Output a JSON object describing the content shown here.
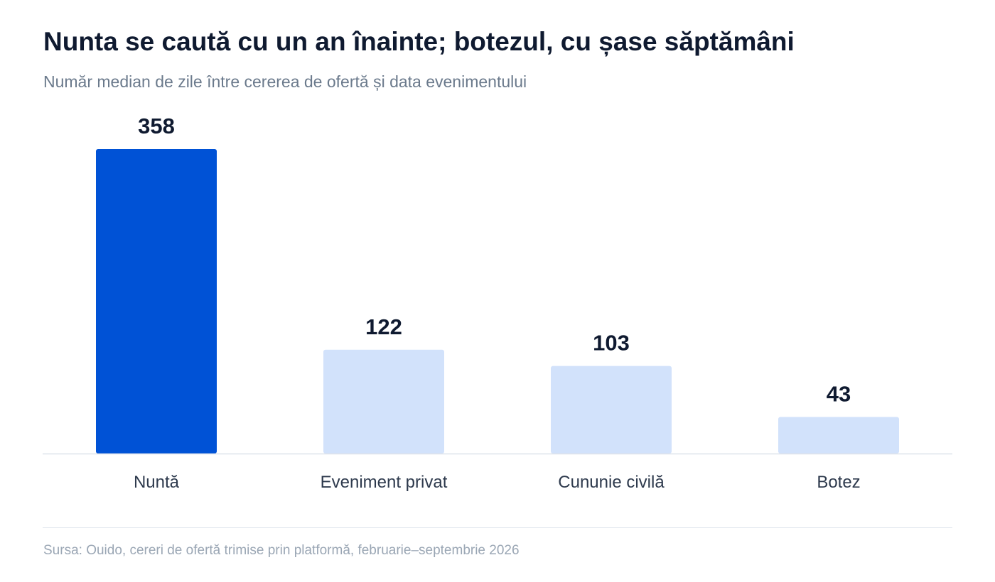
{
  "title": "Nunta se caută cu un an înainte; botezul, cu șase săptămâni",
  "subtitle": "Număr median de zile între cererea de ofertă și data evenimentului",
  "source": "Sursa: Ouido, cereri de ofertă trimise prin platformă, februarie–septembrie 2026",
  "colors": {
    "highlight": "#0052d6",
    "muted": "#d2e2fb",
    "label": "#0f1a30",
    "category": "#2e3a4d",
    "baseline": "#dde3ea"
  },
  "chart_data": {
    "type": "bar",
    "categories": [
      "Nuntă",
      "Eveniment privat",
      "Cununie civilă",
      "Botez"
    ],
    "values": [
      358,
      122,
      103,
      43
    ],
    "data_labels": [
      "358",
      "122",
      "103",
      "43"
    ],
    "highlighted": [
      true,
      false,
      false,
      false
    ],
    "title": "Nunta se caută cu un an înainte; botezul, cu șase săptămâni",
    "subtitle": "Număr median de zile între cererea de ofertă și data evenimentului",
    "unit": "zile",
    "ylim": [
      0,
      358
    ],
    "grid": false,
    "legend": "none"
  }
}
